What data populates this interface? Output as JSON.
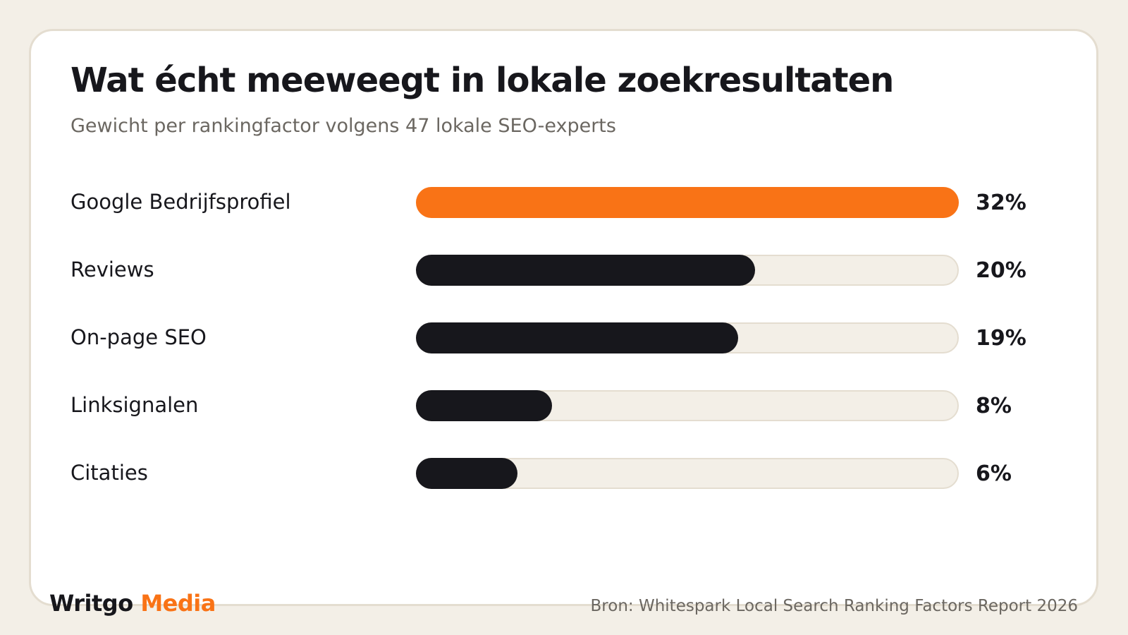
{
  "colors": {
    "background": "#f3efe7",
    "card": "#ffffff",
    "card_border": "#e4ddd0",
    "highlight_bar": "#f97316",
    "bar": "#17171c",
    "track": "#f3efe7",
    "text": "#17171c",
    "muted_text": "#6b6761"
  },
  "chart_data": {
    "type": "bar",
    "orientation": "horizontal",
    "title": "Wat écht meeweegt in lokale zoekresultaten",
    "subtitle": "Gewicht per rankingfactor volgens 47 lokale SEO-experts",
    "categories": [
      "Google Bedrijfsprofiel",
      "Reviews",
      "On-page SEO",
      "Linksignalen",
      "Citaties"
    ],
    "values": [
      32,
      20,
      19,
      8,
      6
    ],
    "value_labels": [
      "32%",
      "20%",
      "19%",
      "8%",
      "6%"
    ],
    "unit": "%",
    "highlight_index": 0,
    "xlim": [
      0,
      32
    ],
    "grid": false,
    "legend": "none"
  },
  "footer": {
    "logo_main": "Writgo",
    "logo_accent": "Media",
    "source": "Bron: Whitespark Local Search Ranking Factors Report 2026"
  }
}
